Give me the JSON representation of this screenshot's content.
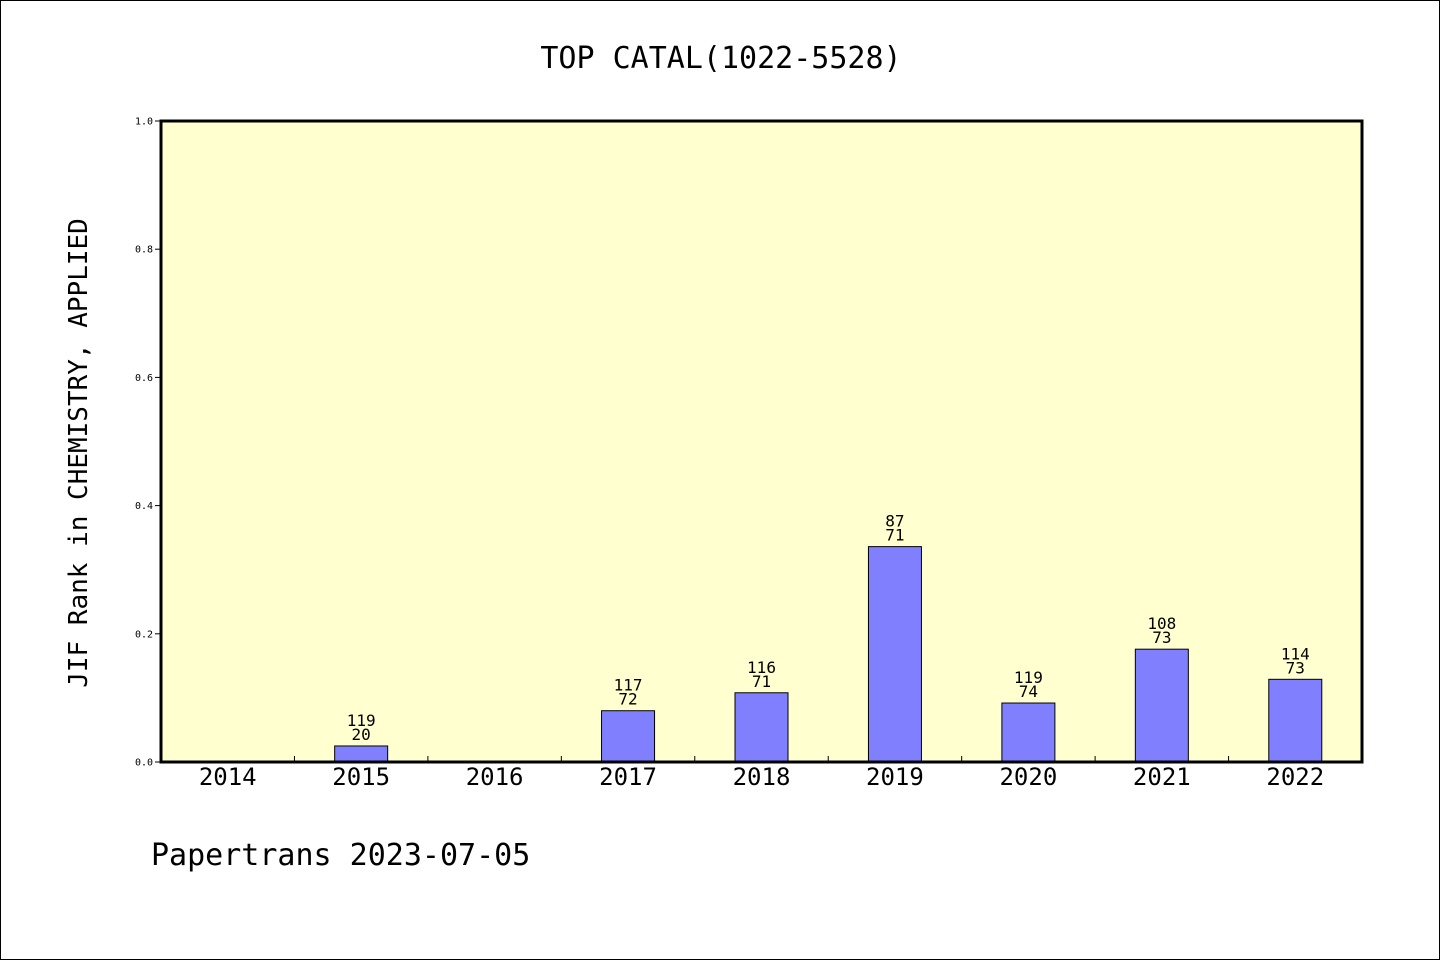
{
  "chart_data": {
    "type": "bar",
    "title": "TOP CATAL(1022-5528)",
    "xlabel": "",
    "ylabel": "JIF Rank in CHEMISTRY, APPLIED",
    "ylim": [
      0,
      1.0
    ],
    "yticks": [
      "0.0",
      "0.2",
      "0.4",
      "0.6",
      "0.8",
      "1.0"
    ],
    "grid": false,
    "categories": [
      "2014",
      "2015",
      "2016",
      "2017",
      "2018",
      "2019",
      "2020",
      "2021",
      "2022"
    ],
    "values": [
      null,
      0.025,
      null,
      0.08,
      0.108,
      0.336,
      0.092,
      0.176,
      0.129
    ],
    "totals": [
      null,
      "119",
      null,
      "117",
      "116",
      "87",
      "119",
      "108",
      "114"
    ],
    "ranks": [
      null,
      "20",
      null,
      "72",
      "71",
      "71",
      "74",
      "73",
      "73"
    ],
    "colors": {
      "bar": "#8080ff",
      "plot_bg": "#ffffd0",
      "axis": "#000000"
    }
  },
  "footer": {
    "text": "Papertrans 2023-07-05"
  }
}
